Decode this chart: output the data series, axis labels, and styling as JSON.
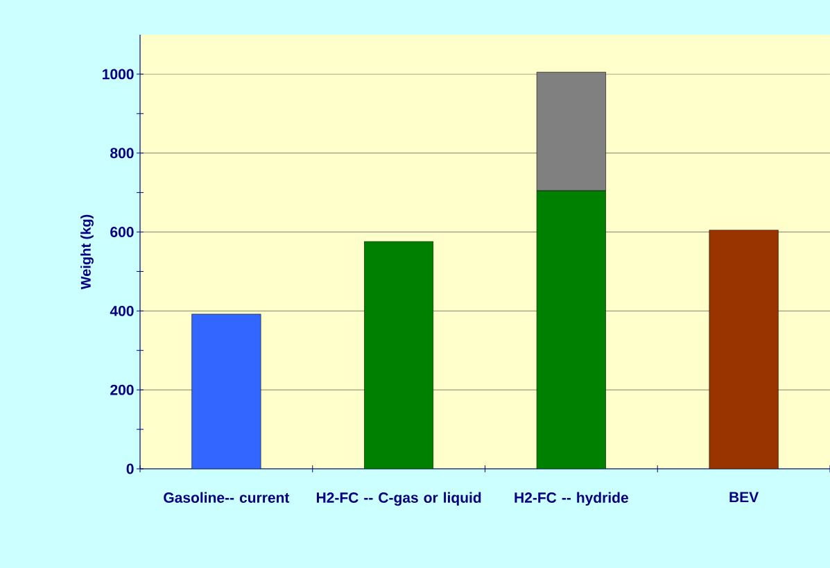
{
  "chart_data": {
    "type": "bar",
    "stacked": true,
    "ylabel": "Weight (kg)",
    "categories": [
      "Gasoline-- current",
      "H2-FC -- C-gas or liquid",
      "H2-FC -- hydride",
      "BEV"
    ],
    "series": [
      {
        "colors": [
          "#3366ff",
          "#008000",
          "#008000",
          "#993300"
        ],
        "values": [
          392,
          576,
          705,
          605
        ]
      },
      {
        "color": "#808080",
        "values": [
          null,
          null,
          300,
          null
        ]
      }
    ],
    "ylim": [
      0,
      1100
    ],
    "yticks": [
      0,
      200,
      400,
      600,
      800,
      1000
    ],
    "grid": "y"
  }
}
